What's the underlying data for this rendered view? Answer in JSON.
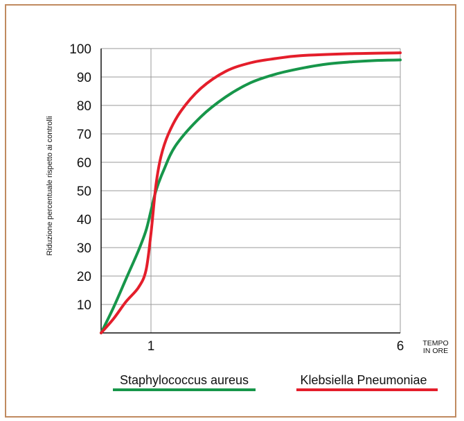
{
  "chart_data": {
    "type": "line",
    "ylabel": "Riduzione percentuale rispetto ai controlli",
    "xlabel_lines": [
      "TEMPO",
      "IN ORE"
    ],
    "x_ticks": [
      1,
      6
    ],
    "y_ticks": [
      10,
      20,
      30,
      40,
      50,
      60,
      70,
      80,
      90,
      100
    ],
    "xlim": [
      0,
      6
    ],
    "ylim": [
      0,
      100
    ],
    "grid": true,
    "legend_position": "bottom",
    "series": [
      {
        "name": "Staphylococcus aureus",
        "color": "#17964a",
        "points": [
          [
            0,
            0
          ],
          [
            0.25,
            9
          ],
          [
            0.5,
            19
          ],
          [
            0.75,
            29
          ],
          [
            0.9,
            36
          ],
          [
            1.0,
            43
          ],
          [
            1.1,
            50
          ],
          [
            1.25,
            57
          ],
          [
            1.5,
            66
          ],
          [
            2.0,
            76
          ],
          [
            2.5,
            83
          ],
          [
            3.0,
            88
          ],
          [
            3.5,
            91
          ],
          [
            4.0,
            93
          ],
          [
            4.5,
            94.5
          ],
          [
            5.0,
            95.3
          ],
          [
            5.5,
            95.8
          ],
          [
            6.0,
            96
          ]
        ]
      },
      {
        "name": "Klebsiella Pneumoniae",
        "color": "#e41e2b",
        "points": [
          [
            0,
            0
          ],
          [
            0.25,
            5
          ],
          [
            0.5,
            11
          ],
          [
            0.75,
            16
          ],
          [
            0.9,
            22
          ],
          [
            1.0,
            35
          ],
          [
            1.1,
            52
          ],
          [
            1.2,
            62
          ],
          [
            1.35,
            70
          ],
          [
            1.6,
            78
          ],
          [
            2.0,
            86
          ],
          [
            2.5,
            92
          ],
          [
            3.0,
            95
          ],
          [
            3.5,
            96.5
          ],
          [
            4.0,
            97.5
          ],
          [
            5.0,
            98.2
          ],
          [
            6.0,
            98.5
          ]
        ]
      }
    ]
  }
}
